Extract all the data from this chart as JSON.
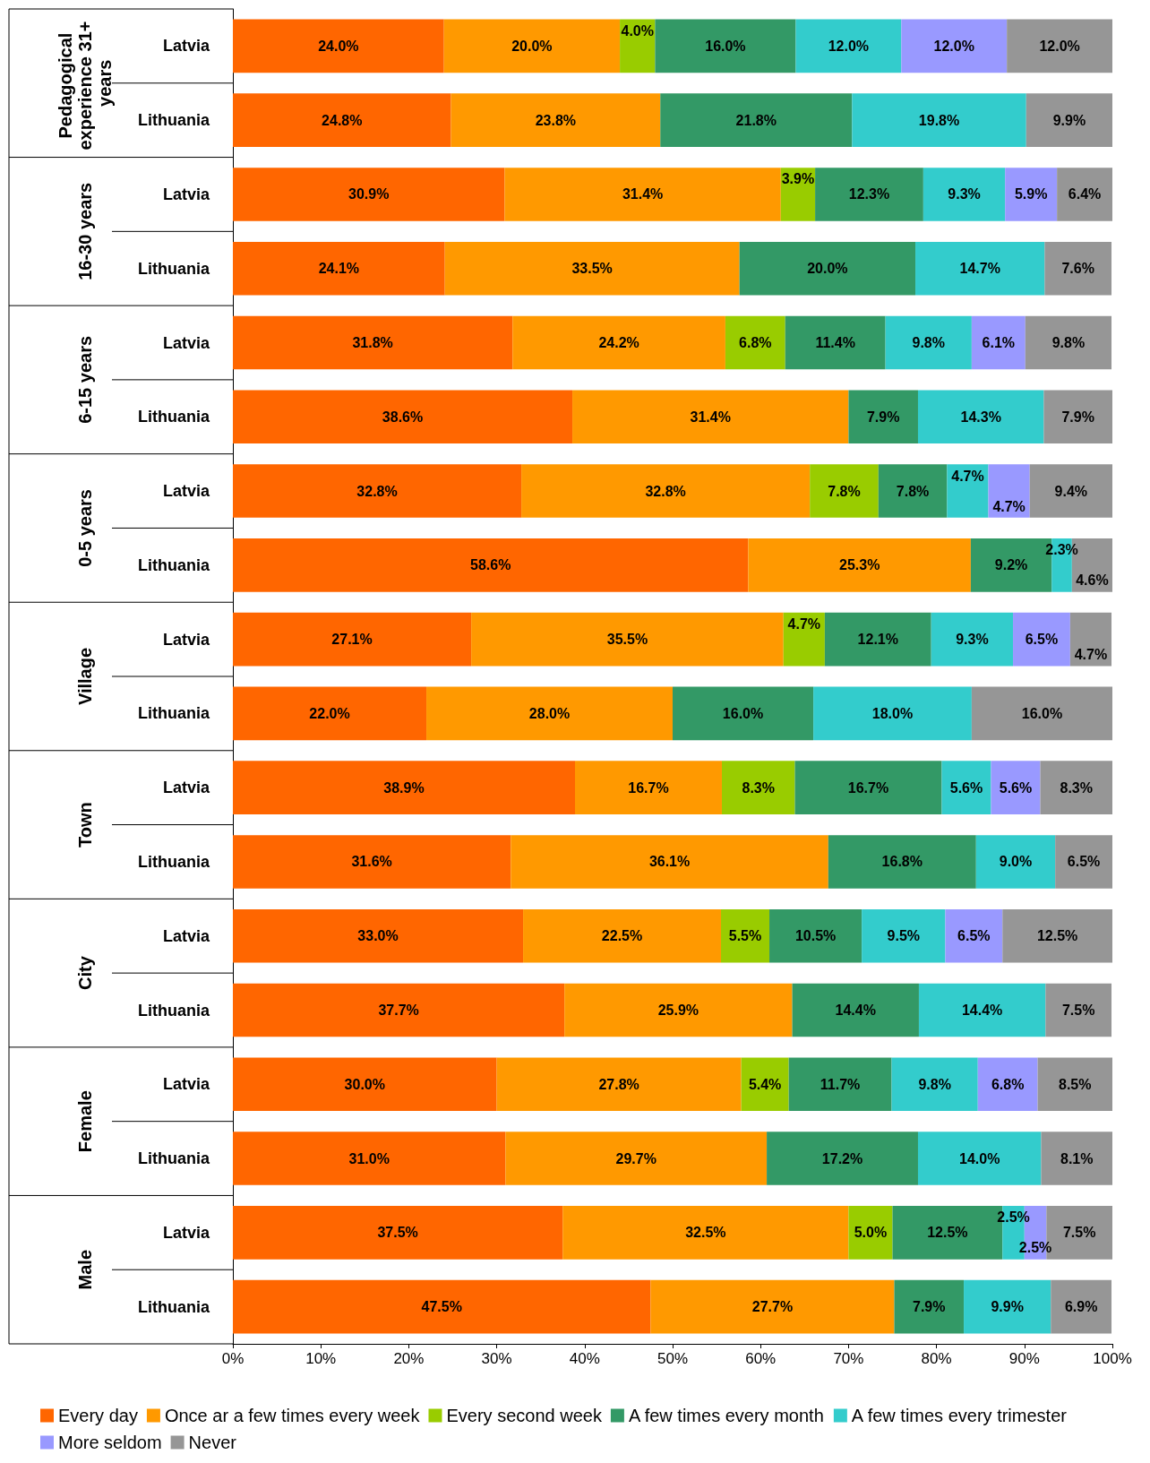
{
  "chart_data": {
    "type": "bar",
    "orientation": "horizontal",
    "stacked": true,
    "legend": "bottom",
    "categories": [
      "Latvia",
      "Lithuania",
      "Latvia",
      "Lithuania",
      "Latvia",
      "Lithuania",
      "Latvia",
      "Lithuania",
      "Latvia",
      "Lithuania",
      "Latvia",
      "Lithuania",
      "Latvia",
      "Lithuania",
      "Latvia",
      "Lithuania",
      "Latvia",
      "Lithuania"
    ],
    "annotations": [
      "Pedagogical experience 31+ years",
      "16-30 years",
      "6-15 years",
      "0-5 years",
      "Village",
      "Town",
      "City",
      "Female",
      "Male"
    ],
    "xlim": [
      0,
      100
    ],
    "xticks": [
      {
        "value": 0,
        "label": "0%"
      },
      {
        "value": 10,
        "label": "10%"
      },
      {
        "value": 20,
        "label": "20%"
      },
      {
        "value": 30,
        "label": "30%"
      },
      {
        "value": 40,
        "label": "40%"
      },
      {
        "value": 50,
        "label": "50%"
      },
      {
        "value": 60,
        "label": "60%"
      },
      {
        "value": 70,
        "label": "70%"
      },
      {
        "value": 80,
        "label": "80%"
      },
      {
        "value": 90,
        "label": "90%"
      },
      {
        "value": 100,
        "label": "100%"
      }
    ],
    "series": [
      {
        "name": "Every day",
        "color": "#ff6600",
        "values": [
          24.0,
          24.8,
          30.9,
          24.1,
          31.8,
          38.6,
          32.8,
          58.6,
          27.1,
          22.0,
          38.9,
          31.6,
          33.0,
          37.7,
          30.0,
          31.0,
          37.5,
          47.5
        ],
        "value_labels": [
          "24.0%",
          "24.8%",
          "30.9%",
          "24.1%",
          "31.8%",
          "38.6%",
          "32.8%",
          "58.6%",
          "27.1%",
          "22.0%",
          "38.9%",
          "31.6%",
          "33.0%",
          "37.7%",
          "30.0%",
          "31.0%",
          "37.5%",
          "47.5%"
        ]
      },
      {
        "name": "Once ar a few times every week",
        "color": "#ff9900",
        "values": [
          20.0,
          23.8,
          31.4,
          33.5,
          24.2,
          31.4,
          32.8,
          25.3,
          35.5,
          28.0,
          16.7,
          36.1,
          22.5,
          25.9,
          27.8,
          29.7,
          32.5,
          27.7
        ],
        "value_labels": [
          "20.0%",
          "23.8%",
          "31.4%",
          "33.5%",
          "24.2%",
          "31.4%",
          "32.8%",
          "25.3%",
          "35.5%",
          "28.0%",
          "16.7%",
          "36.1%",
          "22.5%",
          "25.9%",
          "27.8%",
          "29.7%",
          "32.5%",
          "27.7%"
        ]
      },
      {
        "name": "Every second week",
        "color": "#99cc00",
        "values": [
          4.0,
          null,
          3.9,
          null,
          6.8,
          null,
          7.8,
          null,
          4.7,
          null,
          8.3,
          null,
          5.5,
          null,
          5.4,
          null,
          5.0,
          null
        ],
        "value_labels": [
          "4.0%",
          null,
          "3.9%",
          null,
          "6.8%",
          null,
          "7.8%",
          null,
          "4.7%",
          null,
          "8.3%",
          null,
          "5.5%",
          null,
          "5.4%",
          null,
          "5.0%",
          null
        ]
      },
      {
        "name": "A few times every month",
        "color": "#339966",
        "values": [
          16.0,
          21.8,
          12.3,
          20.0,
          11.4,
          7.9,
          7.8,
          9.2,
          12.1,
          16.0,
          16.7,
          16.8,
          10.5,
          14.4,
          11.7,
          17.2,
          12.5,
          7.9
        ],
        "value_labels": [
          "16.0%",
          "21.8%",
          "12.3%",
          "20.0%",
          "11.4%",
          "7.9%",
          "7.8%",
          "9.2%",
          "12.1%",
          "16.0%",
          "16.7%",
          "16.8%",
          "10.5%",
          "14.4%",
          "11.7%",
          "17.2%",
          "12.5%",
          "7.9%"
        ]
      },
      {
        "name": "A few times every trimester",
        "color": "#33cccc",
        "values": [
          12.0,
          19.8,
          9.3,
          14.7,
          9.8,
          14.3,
          4.7,
          2.3,
          9.3,
          18.0,
          5.6,
          9.0,
          9.5,
          14.4,
          9.8,
          14.0,
          2.5,
          9.9
        ],
        "value_labels": [
          "12.0%",
          "19.8%",
          "9.3%",
          "14.7%",
          "9.8%",
          "14.3%",
          "4.7%",
          "2.3%",
          "9.3%",
          "18.0%",
          "5.6%",
          "9.0%",
          "9.5%",
          "14.4%",
          "9.8%",
          "14.0%",
          "2.5%",
          "9.9%"
        ]
      },
      {
        "name": "More seldom",
        "color": "#9999ff",
        "values": [
          12.0,
          null,
          5.9,
          null,
          6.1,
          null,
          4.7,
          null,
          6.5,
          null,
          5.6,
          null,
          6.5,
          null,
          6.8,
          null,
          2.5,
          null
        ],
        "value_labels": [
          "12.0%",
          null,
          "5.9%",
          null,
          "6.1%",
          null,
          "4.7%",
          null,
          "6.5%",
          null,
          "5.6%",
          null,
          "6.5%",
          null,
          "6.8%",
          null,
          "2.5%",
          null
        ]
      },
      {
        "name": "Never",
        "color": "#969696",
        "values": [
          12.0,
          9.9,
          6.4,
          7.6,
          9.8,
          7.9,
          9.4,
          4.6,
          4.7,
          16.0,
          8.3,
          6.5,
          12.5,
          7.5,
          8.5,
          8.1,
          7.5,
          6.9
        ],
        "value_labels": [
          "12.0%",
          "9.9%",
          "6.4%",
          "7.6%",
          "9.8%",
          "7.9%",
          "9.4%",
          "4.6%",
          "4.7%",
          "16.0%",
          "8.3%",
          "6.5%",
          "12.5%",
          "7.5%",
          "8.5%",
          "8.1%",
          "7.5%",
          "6.9%"
        ]
      }
    ]
  }
}
